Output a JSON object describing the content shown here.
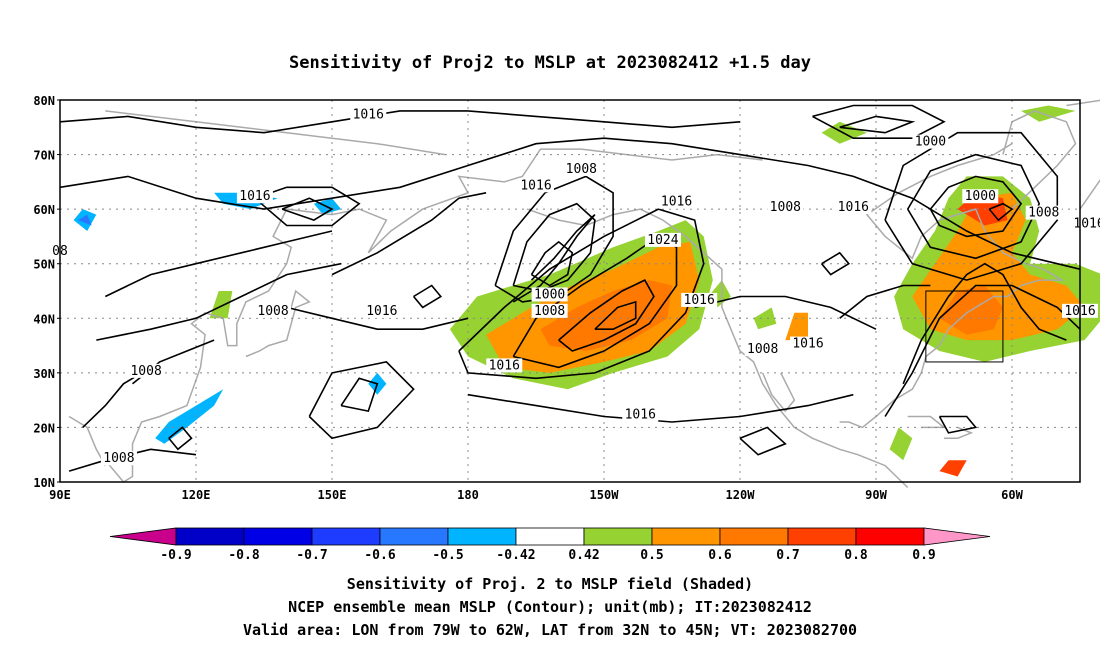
{
  "title": "Sensitivity of Proj2 to MSLP at 2023082412 +1.5 day",
  "map": {
    "lat_labels": [
      "80N",
      "70N",
      "60N",
      "50N",
      "40N",
      "30N",
      "20N",
      "10N"
    ],
    "lon_labels": [
      "90E",
      "120E",
      "150E",
      "180",
      "150W",
      "120W",
      "90W",
      "60W"
    ],
    "lon_range": [
      "90E",
      "45W"
    ],
    "lat_range": [
      "10N",
      "80N"
    ],
    "grid": "dotted",
    "valid_box": {
      "lon": [
        "79W",
        "62W"
      ],
      "lat": [
        "32N",
        "45N"
      ]
    },
    "contour_labels": [
      {
        "text": "1016",
        "lon": 158,
        "lat": 77
      },
      {
        "text": "1008",
        "lon": 205,
        "lat": 67
      },
      {
        "text": "1016",
        "lon": 195,
        "lat": 64
      },
      {
        "text": "1016",
        "lon": 133,
        "lat": 62
      },
      {
        "text": "1016",
        "lon": 226,
        "lat": 61
      },
      {
        "text": "1024",
        "lon": 223,
        "lat": 54
      },
      {
        "text": "1008",
        "lon": 250,
        "lat": 60
      },
      {
        "text": "1016",
        "lon": 265,
        "lat": 60
      },
      {
        "text": "1000",
        "lon": 282,
        "lat": 72
      },
      {
        "text": "1000",
        "lon": 293,
        "lat": 62
      },
      {
        "text": "1008",
        "lon": 307,
        "lat": 59
      },
      {
        "text": "1016",
        "lon": 317,
        "lat": 57
      },
      {
        "text": "08",
        "lon": 90,
        "lat": 52
      },
      {
        "text": "1000",
        "lon": 198,
        "lat": 44
      },
      {
        "text": "1008",
        "lon": 198,
        "lat": 41
      },
      {
        "text": "1008",
        "lon": 137,
        "lat": 41
      },
      {
        "text": "1016",
        "lon": 161,
        "lat": 41
      },
      {
        "text": "1016",
        "lon": 231,
        "lat": 43
      },
      {
        "text": "1016",
        "lon": 315,
        "lat": 41
      },
      {
        "text": "1016",
        "lon": 255,
        "lat": 35
      },
      {
        "text": "1008",
        "lon": 245,
        "lat": 34
      },
      {
        "text": "1016",
        "lon": 188,
        "lat": 31
      },
      {
        "text": "1008",
        "lon": 109,
        "lat": 30
      },
      {
        "text": "1016",
        "lon": 218,
        "lat": 22
      },
      {
        "text": "1008",
        "lon": 103,
        "lat": 14
      }
    ]
  },
  "colorbar": {
    "labels": [
      "-0.9",
      "-0.8",
      "-0.7",
      "-0.6",
      "-0.5",
      "-0.42",
      "0.42",
      "0.5",
      "0.6",
      "0.7",
      "0.8",
      "0.9"
    ],
    "colors": [
      "#c8008c",
      "#0000c8",
      "#0000e6",
      "#1e3cff",
      "#2878ff",
      "#00b4ff",
      "#ffffff",
      "#96d232",
      "#ff9600",
      "#ff7800",
      "#ff4000",
      "#ff0000",
      "#ff96c8"
    ]
  },
  "caption": {
    "line1": "Sensitivity of Proj. 2 to MSLP field (Shaded)",
    "line2": "NCEP ensemble mean MSLP (Contour); unit(mb); IT:2023082412",
    "line3": "Valid area: LON from 79W to 62W, LAT from 32N to 45N; VT: 2023082700"
  }
}
